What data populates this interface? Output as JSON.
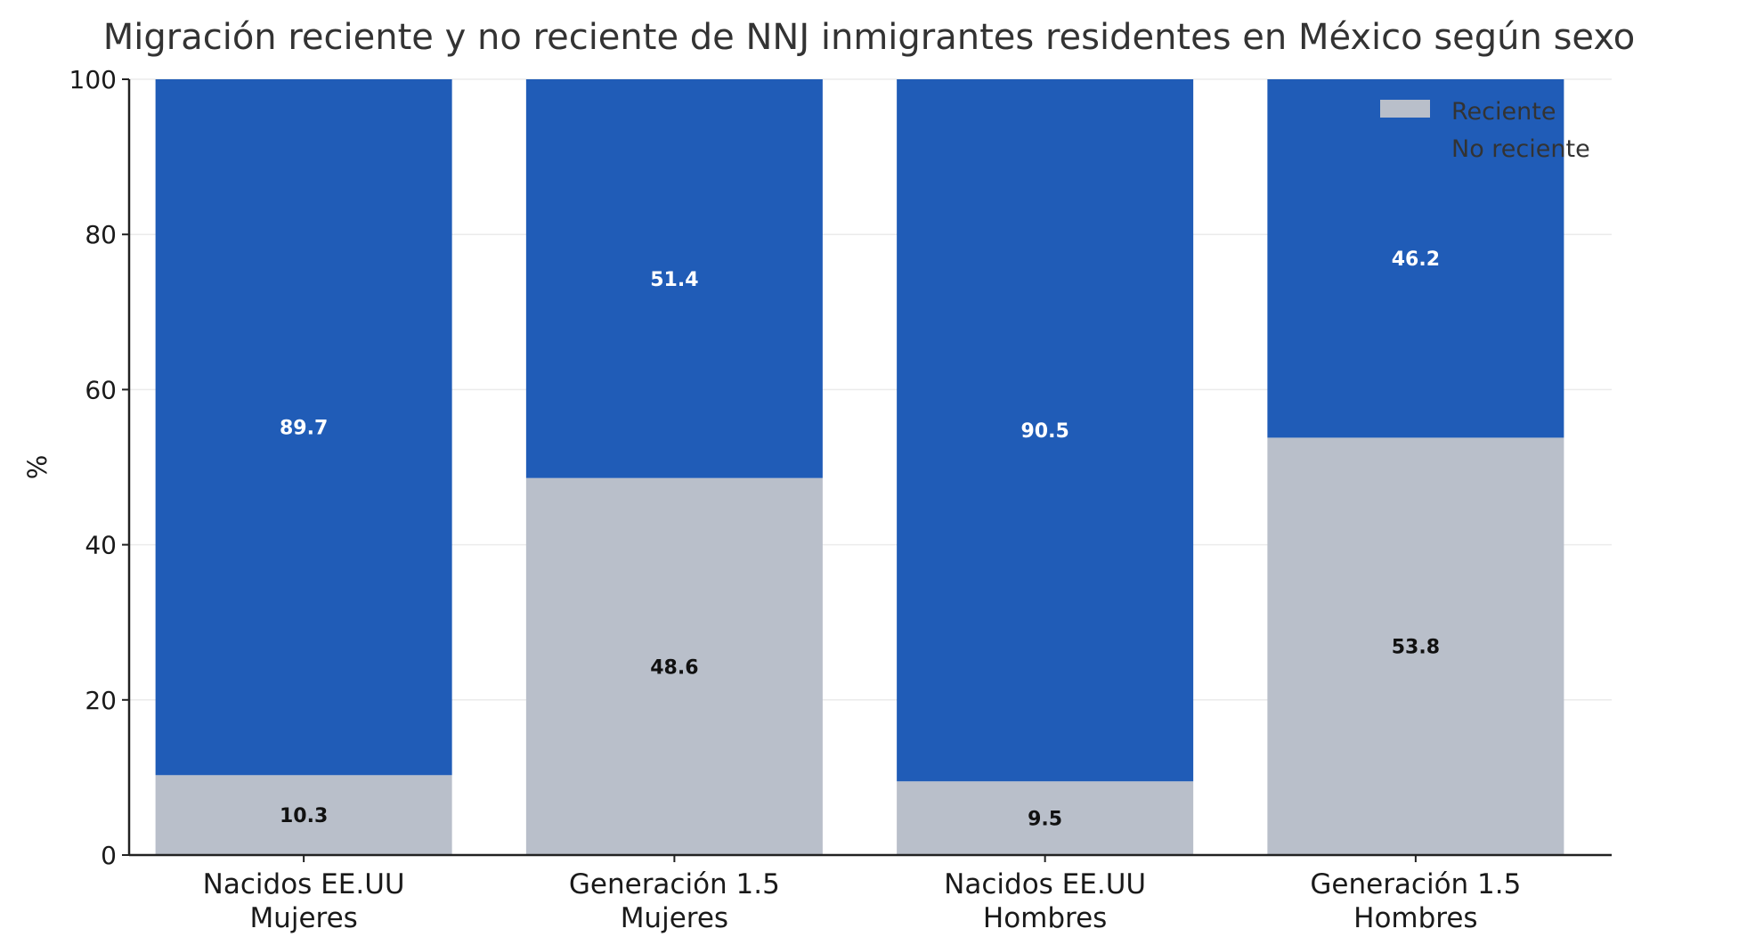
{
  "chart_data": {
    "type": "bar",
    "stacked": true,
    "title": "Migración reciente y no reciente de NNJ inmigrantes residentes en México según sexo",
    "xlabel": "",
    "ylabel": "%",
    "ylim": [
      0,
      100
    ],
    "yticks": [
      0,
      20,
      40,
      60,
      80,
      100
    ],
    "grid": "horizontal",
    "legend_position": "top-right",
    "categories": [
      [
        "Nacidos EE.UU",
        "Mujeres"
      ],
      [
        "Generación 1.5",
        "Mujeres"
      ],
      [
        "Nacidos EE.UU",
        "Hombres"
      ],
      [
        "Generación 1.5",
        "Hombres"
      ]
    ],
    "series": [
      {
        "name": "Reciente",
        "color": "#b9bfca",
        "label_color": "#111111",
        "values": [
          10.3,
          48.6,
          9.5,
          53.8
        ]
      },
      {
        "name": "No reciente",
        "color": "#205cb7",
        "label_color": "#ffffff",
        "values": [
          89.7,
          51.4,
          90.5,
          46.2
        ]
      }
    ]
  }
}
